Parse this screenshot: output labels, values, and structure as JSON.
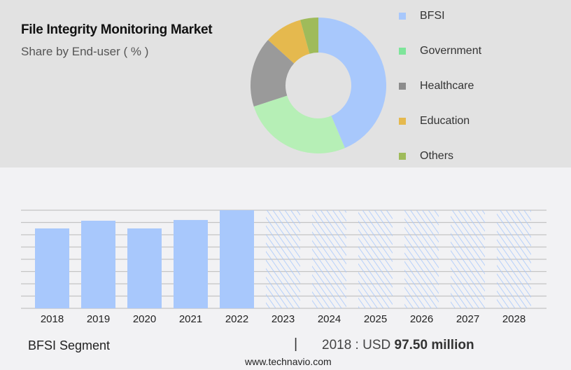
{
  "chart_data": [
    {
      "type": "pie",
      "title": "File Integrity Monitoring Market",
      "subtitle": "Share by End-user ( % )",
      "donut": true,
      "legend_position": "right",
      "categories": [
        "BFSI",
        "Government",
        "Healthcare",
        "Education",
        "Others"
      ],
      "values": [
        43.6,
        26.4,
        16.7,
        9.0,
        4.3
      ],
      "colors": [
        "#a8c8fc",
        "#b6efb6",
        "#9a9a9a",
        "#e5b94e",
        "#9fbb5a"
      ],
      "legend_colors": [
        "#a8c8fc",
        "#7ee59a",
        "#8c8c8c",
        "#e5b94e",
        "#9fbb5a"
      ]
    },
    {
      "type": "bar",
      "categories": [
        "2018",
        "2019",
        "2020",
        "2021",
        "2022",
        "2023",
        "2024",
        "2025",
        "2026",
        "2027",
        "2028"
      ],
      "values": [
        97.5,
        106.9,
        97.5,
        107.8,
        119.7,
        null,
        null,
        null,
        null,
        null,
        null
      ],
      "forecast": [
        "2023",
        "2024",
        "2025",
        "2026",
        "2027",
        "2028"
      ],
      "ylim": [
        0,
        119.7
      ],
      "grid": true,
      "color": "#a8c8fc"
    }
  ],
  "footer": {
    "segment": "BFSI Segment",
    "separator": "|",
    "value_prefix": "2018 : USD",
    "value": "97.50 million",
    "website": "www.technavio.com"
  }
}
